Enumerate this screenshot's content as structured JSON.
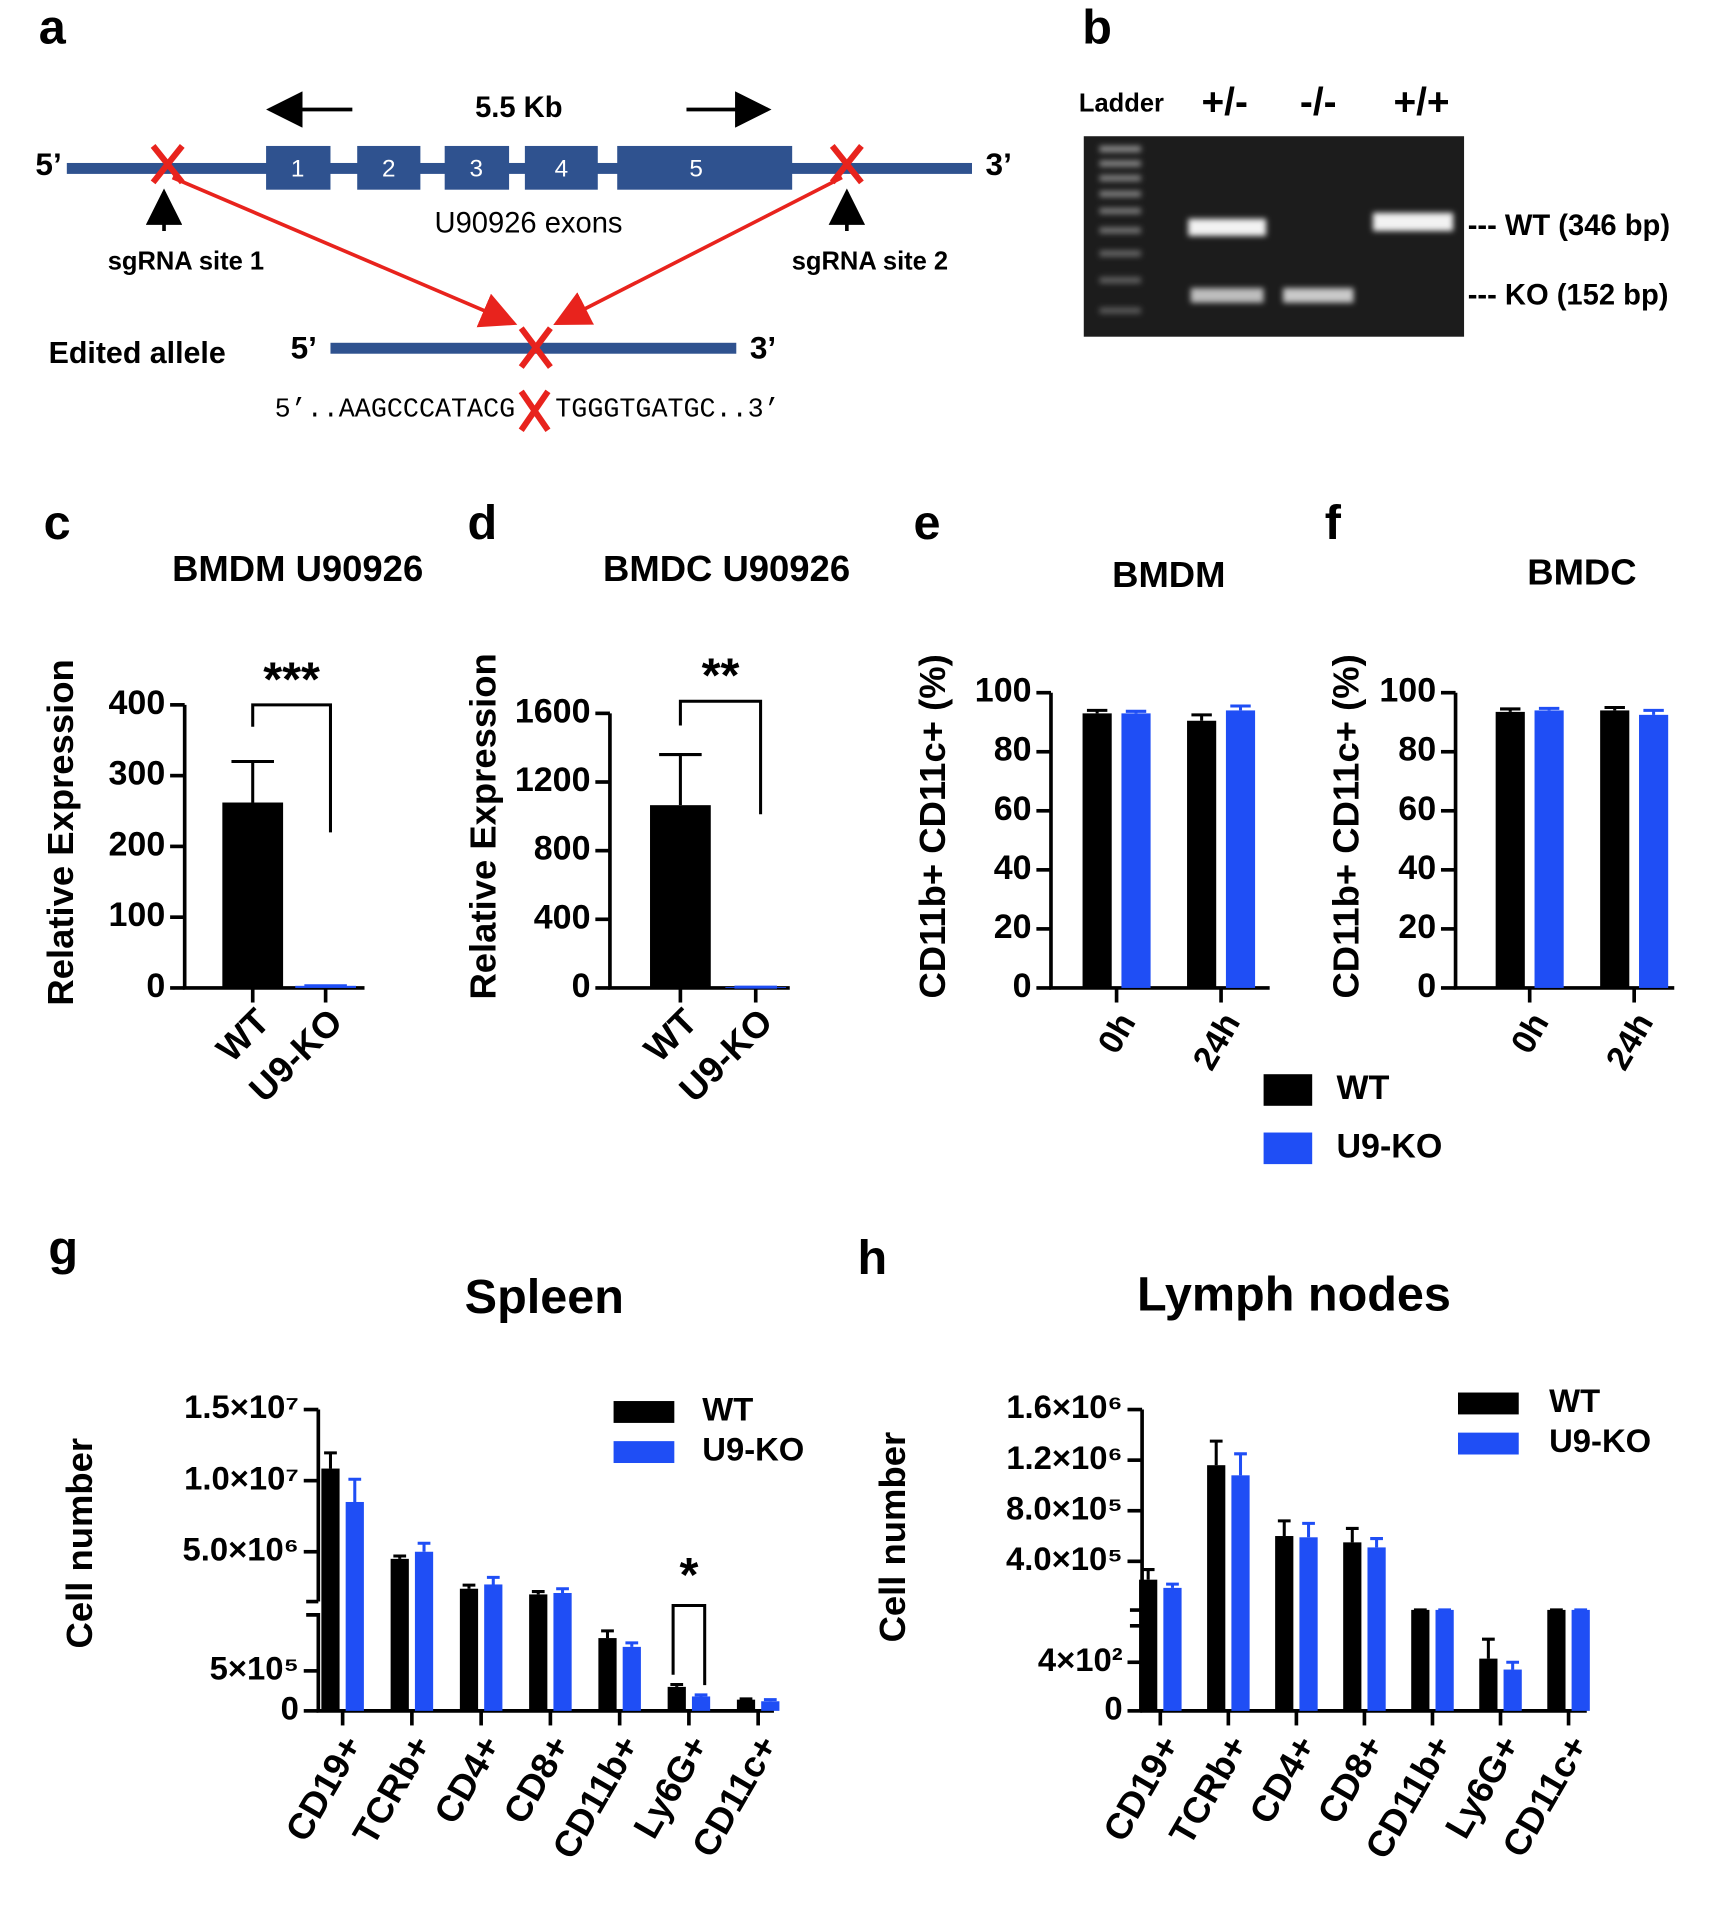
{
  "panel_labels": [
    "a",
    "b",
    "c",
    "d",
    "e",
    "f",
    "g",
    "h"
  ],
  "diagram": {
    "scale_label": "5.5 Kb",
    "five_prime": "5’",
    "three_prime": "3’",
    "exons": [
      "1",
      "2",
      "3",
      "4",
      "5"
    ],
    "exon_caption": "U90926 exons",
    "sgrna_sites": [
      "sgRNA site 1",
      "sgRNA site 2"
    ],
    "edited_label": "Edited allele",
    "sequence_left": "5’..AAGCCCATACG",
    "sequence_right": "TGGGTGATGC..3’"
  },
  "gel": {
    "lanes": [
      "Ladder",
      "+/-",
      "-/-",
      "+/+"
    ],
    "bands": [
      "--- WT (346 bp)",
      "--- KO (152 bp)"
    ]
  },
  "chart_data": [
    {
      "type": "bar",
      "title": "BMDM U90926",
      "ylabel": "Relative Expression",
      "categories": [
        "WT",
        "U9-KO"
      ],
      "values": [
        262,
        3
      ],
      "errors": [
        58,
        0
      ],
      "colors": [
        "#000000",
        "#1f4ef5"
      ],
      "ylim": [
        0,
        400
      ],
      "yticks": [
        0,
        100,
        200,
        300,
        400
      ],
      "annotations": [
        {
          "text": "***"
        }
      ]
    },
    {
      "type": "bar",
      "title": "BMDC U90926",
      "ylabel": "Relative Expression",
      "categories": [
        "WT",
        "U9-KO"
      ],
      "values": [
        1065,
        5
      ],
      "errors": [
        295,
        0
      ],
      "colors": [
        "#000000",
        "#1f4ef5"
      ],
      "ylim": [
        0,
        1600
      ],
      "yticks": [
        0,
        400,
        800,
        1200,
        1600
      ],
      "annotations": [
        {
          "text": "**"
        }
      ]
    },
    {
      "type": "grouped_bar",
      "title": "BMDM",
      "ylabel": "CD11b+ CD11c+ (%)",
      "categories": [
        "0h",
        "24h"
      ],
      "series": [
        {
          "name": "WT",
          "color": "#000000",
          "values": [
            93,
            90.5
          ],
          "errors": [
            1,
            2
          ]
        },
        {
          "name": "U9-KO",
          "color": "#1f4ef5",
          "values": [
            93,
            94
          ],
          "errors": [
            0.7,
            1.5
          ]
        }
      ],
      "ylim": [
        0,
        100
      ],
      "yticks": [
        0,
        20,
        40,
        60,
        80,
        100
      ],
      "legend": true
    },
    {
      "type": "grouped_bar",
      "title": "BMDC",
      "ylabel": "CD11b+ CD11c+ (%)",
      "categories": [
        "0h",
        "24h"
      ],
      "series": [
        {
          "name": "WT",
          "color": "#000000",
          "values": [
            93.5,
            94
          ],
          "errors": [
            1,
            1
          ]
        },
        {
          "name": "U9-KO",
          "color": "#1f4ef5",
          "values": [
            94,
            92.5
          ],
          "errors": [
            0.7,
            1.5
          ]
        }
      ],
      "ylim": [
        0,
        100
      ],
      "yticks": [
        0,
        20,
        40,
        60,
        80,
        100
      ],
      "legend": false
    },
    {
      "type": "grouped_bar",
      "title": "Spleen",
      "ylabel": "Cell number",
      "categories": [
        "CD19+",
        "TCRb+",
        "CD4+",
        "CD8+",
        "CD11b+",
        "Ly6G+",
        "CD11c+"
      ],
      "series": [
        {
          "name": "WT",
          "color": "#000000",
          "values": [
            10850000,
            4500000,
            2400000,
            2000000,
            910000,
            300000,
            140000
          ],
          "errors": [
            1100000,
            200000,
            250000,
            200000,
            90000,
            30000,
            10000
          ]
        },
        {
          "name": "U9-KO",
          "color": "#1f4ef5",
          "values": [
            8500000,
            5000000,
            2700000,
            2100000,
            800000,
            180000,
            120000
          ],
          "errors": [
            1600000,
            600000,
            500000,
            300000,
            50000,
            20000,
            20000
          ]
        }
      ],
      "ylim": [
        0,
        15000000
      ],
      "ybreak": [
        1200000,
        1500000
      ],
      "yticks": [
        0,
        {
          "value": 500000,
          "label": "5×10⁵"
        },
        {
          "value": 5000000,
          "label": "5.0×10⁶"
        },
        {
          "value": 10000000,
          "label": "1.0×10⁷"
        },
        {
          "value": 15000000,
          "label": "1.5×10⁷"
        }
      ],
      "legend": true,
      "annotations": [
        {
          "text": "*",
          "category": "Ly6G+"
        }
      ]
    },
    {
      "type": "grouped_bar",
      "title": "Lymph nodes",
      "ylabel": "Cell number",
      "categories": [
        "CD19+",
        "TCRb+",
        "CD4+",
        "CD8+",
        "CD11b+",
        "Ly6G+",
        "CD11c+"
      ],
      "series": [
        {
          "name": "WT",
          "color": "#000000",
          "values": [
            255000,
            1160000,
            600000,
            550000,
            16000,
            430,
            16000
          ],
          "errors": [
            80000,
            190000,
            120000,
            110000,
            0,
            160,
            0
          ]
        },
        {
          "name": "U9-KO",
          "color": "#1f4ef5",
          "values": [
            190000,
            1080000,
            590000,
            510000,
            16000,
            340,
            16000
          ],
          "errors": [
            30000,
            170000,
            110000,
            70000,
            0,
            60,
            0
          ]
        }
      ],
      "ylim": [
        0,
        1600000
      ],
      "ybreak": [
        700,
        15000
      ],
      "yticks": [
        0,
        {
          "value": 400,
          "label": "4×10²"
        },
        {
          "value": 400000,
          "label": "4.0×10⁵"
        },
        {
          "value": 800000,
          "label": "8.0×10⁵"
        },
        {
          "value": 1200000,
          "label": "1.2×10⁶"
        },
        {
          "value": 1600000,
          "label": "1.6×10⁶"
        }
      ],
      "legend": true
    }
  ]
}
